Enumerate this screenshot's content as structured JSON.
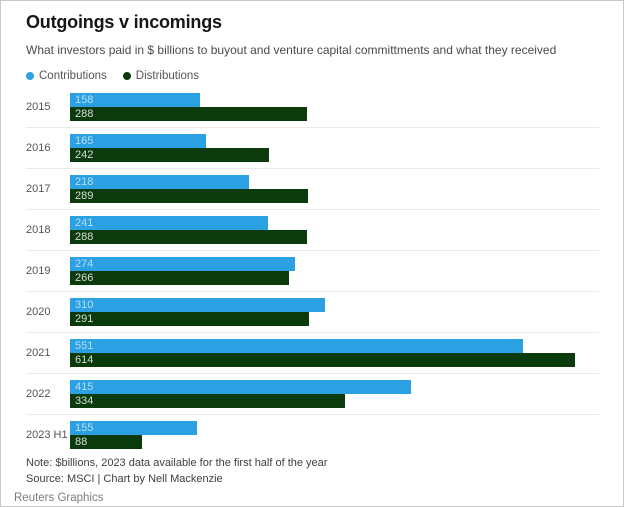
{
  "header": {
    "title": "Outgoings v incomings",
    "subtitle": "What investors paid in $ billions to buyout and venture capital committments and what they received"
  },
  "legend": [
    {
      "label": "Contributions",
      "color": "#2ba0e2"
    },
    {
      "label": "Distributions",
      "color": "#0b3a0d"
    }
  ],
  "chart_data": {
    "type": "bar",
    "orientation": "horizontal",
    "title": "Outgoings v incomings",
    "categories": [
      "2015",
      "2016",
      "2017",
      "2018",
      "2019",
      "2020",
      "2021",
      "2022",
      "2023 H1"
    ],
    "series": [
      {
        "name": "Contributions",
        "color": "#2ba0e2",
        "values": [
          158,
          165,
          218,
          241,
          274,
          310,
          551,
          415,
          155
        ]
      },
      {
        "name": "Distributions",
        "color": "#0b3a0d",
        "values": [
          288,
          242,
          289,
          288,
          266,
          291,
          614,
          334,
          88
        ]
      }
    ],
    "xlim": [
      0,
      614
    ],
    "units": "$ billions",
    "value_labels": "inside-left",
    "grid": false,
    "legend_position": "top-left"
  },
  "footer": {
    "note": "Note: $billions, 2023 data available for the first half of the year",
    "source": "Source: MSCI | Chart by Nell Mackenzie",
    "credit": "Reuters Graphics"
  },
  "colors": {
    "contributions": "#2ba0e2",
    "distributions": "#0b3a0d",
    "separator": "#eaeaea",
    "text_primary": "#161616",
    "text_secondary": "#4a4a4a"
  }
}
